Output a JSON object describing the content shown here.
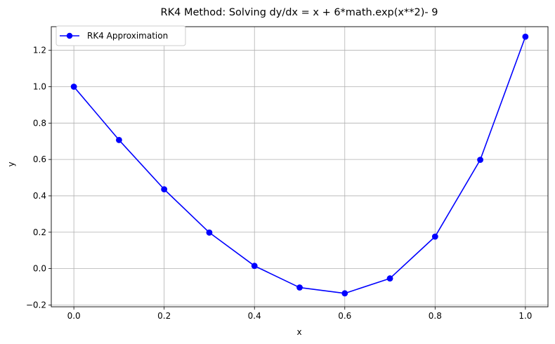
{
  "chart_data": {
    "type": "line",
    "title": "RK4 Method: Solving dy/dx = x + 6*math.exp(x**2)- 9",
    "xlabel": "x",
    "ylabel": "y",
    "xlim": [
      -0.05,
      1.05
    ],
    "ylim": [
      -0.21,
      1.33
    ],
    "xticks": [
      0.0,
      0.2,
      0.4,
      0.6,
      0.8,
      1.0
    ],
    "xtick_labels": [
      "0.0",
      "0.2",
      "0.4",
      "0.6",
      "0.8",
      "1.0"
    ],
    "yticks": [
      -0.2,
      0.0,
      0.2,
      0.4,
      0.6,
      0.8,
      1.0,
      1.2
    ],
    "ytick_labels": [
      "−0.2",
      "0.0",
      "0.2",
      "0.4",
      "0.6",
      "0.8",
      "1.0",
      "1.2"
    ],
    "grid": true,
    "legend_position": "upper-left",
    "series": [
      {
        "name": "RK4 Approximation",
        "color": "#0000ff",
        "marker": "circle",
        "x": [
          0.0,
          0.1,
          0.2,
          0.3,
          0.4,
          0.5,
          0.6,
          0.7,
          0.8,
          0.9,
          1.0
        ],
        "y": [
          1.0,
          0.707,
          0.436,
          0.198,
          0.015,
          -0.104,
          -0.136,
          -0.054,
          0.176,
          0.598,
          1.275
        ]
      }
    ]
  }
}
